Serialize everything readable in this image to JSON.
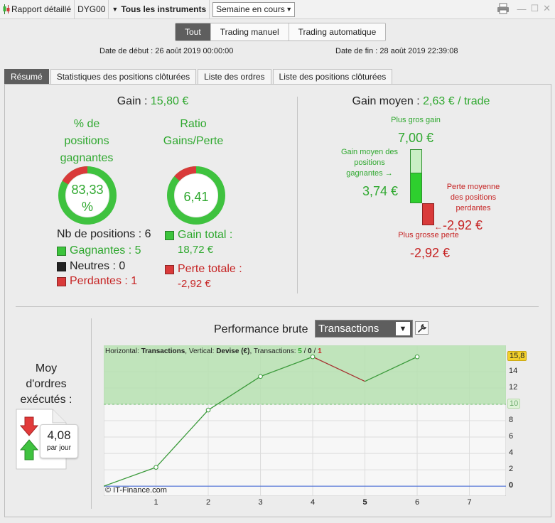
{
  "toolbar": {
    "report_label": "Rapport détaillé",
    "account": "DYG00",
    "instruments": "Tous les instruments",
    "period": "Semaine en cours"
  },
  "filter": {
    "options": [
      "Tout",
      "Trading manuel",
      "Trading automatique"
    ],
    "selected": "Tout"
  },
  "dates": {
    "start": "Date de début : 26 août 2019 00:00:00",
    "end": "Date de fin : 28 août 2019 22:39:08"
  },
  "tabs": [
    "Résumé",
    "Statistiques des positions clôturées",
    "Liste des ordres",
    "Liste des positions clôturées"
  ],
  "summary": {
    "gain_label": "Gain : ",
    "gain_value": "15,80 €",
    "win_pct_title_1": "% de",
    "win_pct_title_2": "positions",
    "win_pct_title_3": "gagnantes",
    "win_pct_value_1": "83,33",
    "win_pct_value_2": "%",
    "win_pct_fraction": 0.8333,
    "ratio_title_1": "Ratio",
    "ratio_title_2": "Gains/Perte",
    "ratio_value": "6,41",
    "ratio_fraction": 0.865,
    "nb_positions": "Nb de positions : 6",
    "winners": "Gagnantes : 5",
    "neutrals": "Neutres : 0",
    "losers": "Perdantes : 1",
    "gain_total_label": "Gain total :",
    "gain_total_value": "18,72 €",
    "loss_total_label": "Perte totale :",
    "loss_total_value": "-2,92 €"
  },
  "avg_gain": {
    "label": "Gain moyen : ",
    "value": "2,63 € / trade",
    "biggest_gain_label": "Plus gros gain",
    "biggest_gain_value": "7,00 €",
    "avg_win_label_1": "Gain moyen des",
    "avg_win_label_2": "positions",
    "avg_win_label_3": "gagnantes",
    "avg_win_value": "3,74 €",
    "avg_loss_label_1": "Perte moyenne",
    "avg_loss_label_2": "des positions",
    "avg_loss_label_3": "perdantes",
    "avg_loss_value": "-2,92 €",
    "biggest_loss_label": "Plus grosse perte",
    "biggest_loss_value": "-2,92 €"
  },
  "orders": {
    "title_1": "Moy",
    "title_2": "d'ordres",
    "title_3": "exécutés :",
    "value": "4,08",
    "unit": "par jour"
  },
  "performance": {
    "title": "Performance brute",
    "dropdown": "Transactions",
    "caption_prefix": "Horizontal: ",
    "caption_h": "Transactions",
    "caption_mid": ", Vertical: ",
    "caption_v": "Devise (€)",
    "caption_tx": ", Transactions: ",
    "tx_win": "5",
    "tx_sep1": " / ",
    "tx_neutral": "0",
    "tx_sep2": " / ",
    "tx_loss": "1",
    "copyright": "© IT-Finance.com",
    "y_badge_max": "15,8",
    "y_badge_threshold": "10"
  },
  "chart_data": {
    "type": "line",
    "x": [
      0,
      1,
      2,
      3,
      4,
      5,
      6
    ],
    "y": [
      0,
      2.3,
      9.3,
      13.4,
      15.8,
      12.8,
      15.8
    ],
    "segment_colors": [
      "green",
      "green",
      "green",
      "green",
      "red",
      "green"
    ],
    "markers_at_x": [
      1,
      2,
      3,
      4,
      6
    ],
    "x_ticks": [
      "1",
      "2",
      "3",
      "4",
      "5",
      "6",
      "7"
    ],
    "y_ticks": [
      "0",
      "2",
      "4",
      "6",
      "8",
      "10",
      "12",
      "14"
    ],
    "xlim": [
      0,
      7.7
    ],
    "ylim": [
      -1.2,
      17.2
    ],
    "highlight_band_from": 10,
    "grid": true,
    "colors": {
      "up": "#3a9a3a",
      "down": "#a53030",
      "band": "#b6e0b0",
      "zero": "#4a6fd8"
    }
  }
}
